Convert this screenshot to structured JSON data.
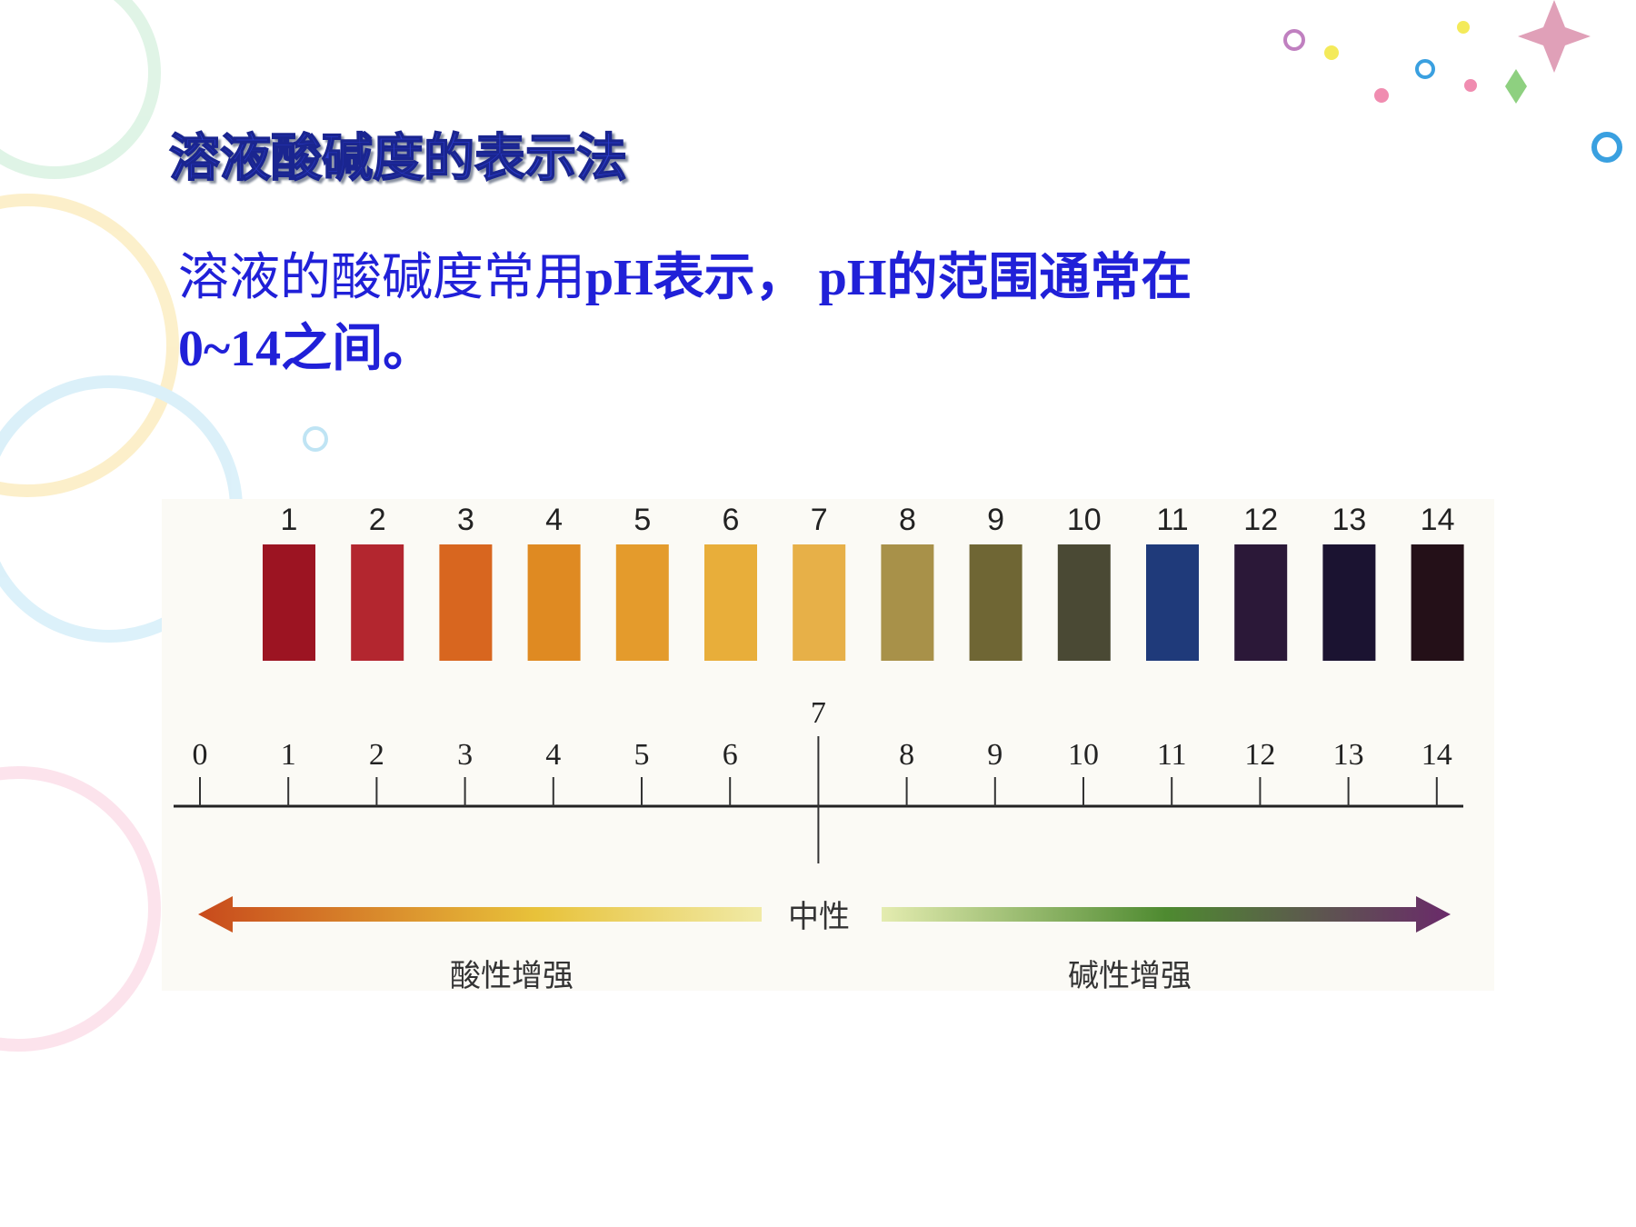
{
  "title": "溶液酸碱度的表示法",
  "body": {
    "text_a": "溶液的酸碱度常用",
    "text_b": "pH表示， pH的范围通常在",
    "text_c": "0~14之间。"
  },
  "ph_chart": {
    "strips": [
      {
        "label": "1",
        "color": "#9c1422"
      },
      {
        "label": "2",
        "color": "#b3262f"
      },
      {
        "label": "3",
        "color": "#d8661f"
      },
      {
        "label": "4",
        "color": "#df8a22"
      },
      {
        "label": "5",
        "color": "#e49b2c"
      },
      {
        "label": "6",
        "color": "#e8ae3a"
      },
      {
        "label": "7",
        "color": "#e7b048"
      },
      {
        "label": "8",
        "color": "#a89149"
      },
      {
        "label": "9",
        "color": "#6f6634"
      },
      {
        "label": "10",
        "color": "#4a4934"
      },
      {
        "label": "11",
        "color": "#1f3a7a"
      },
      {
        "label": "12",
        "color": "#2b1838"
      },
      {
        "label": "13",
        "color": "#1b1331"
      },
      {
        "label": "14",
        "color": "#241018"
      }
    ],
    "scale_labels": [
      "0",
      "1",
      "2",
      "3",
      "4",
      "5",
      "6",
      "7",
      "8",
      "9",
      "10",
      "11",
      "12",
      "13",
      "14"
    ],
    "neutral_label": "中性",
    "acid_label": "酸性增强",
    "base_label": "碱性增强"
  }
}
